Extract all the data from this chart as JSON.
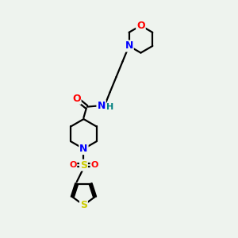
{
  "bg_color": "#eef3ee",
  "bond_color": "#000000",
  "bond_width": 1.6,
  "atom_colors": {
    "O": "#ff0000",
    "N": "#0000ff",
    "S": "#cccc00",
    "H": "#008080",
    "C": "#000000"
  },
  "font_size_atom": 9,
  "font_size_small": 8,
  "xlim": [
    0,
    10
  ],
  "ylim": [
    0,
    13
  ]
}
